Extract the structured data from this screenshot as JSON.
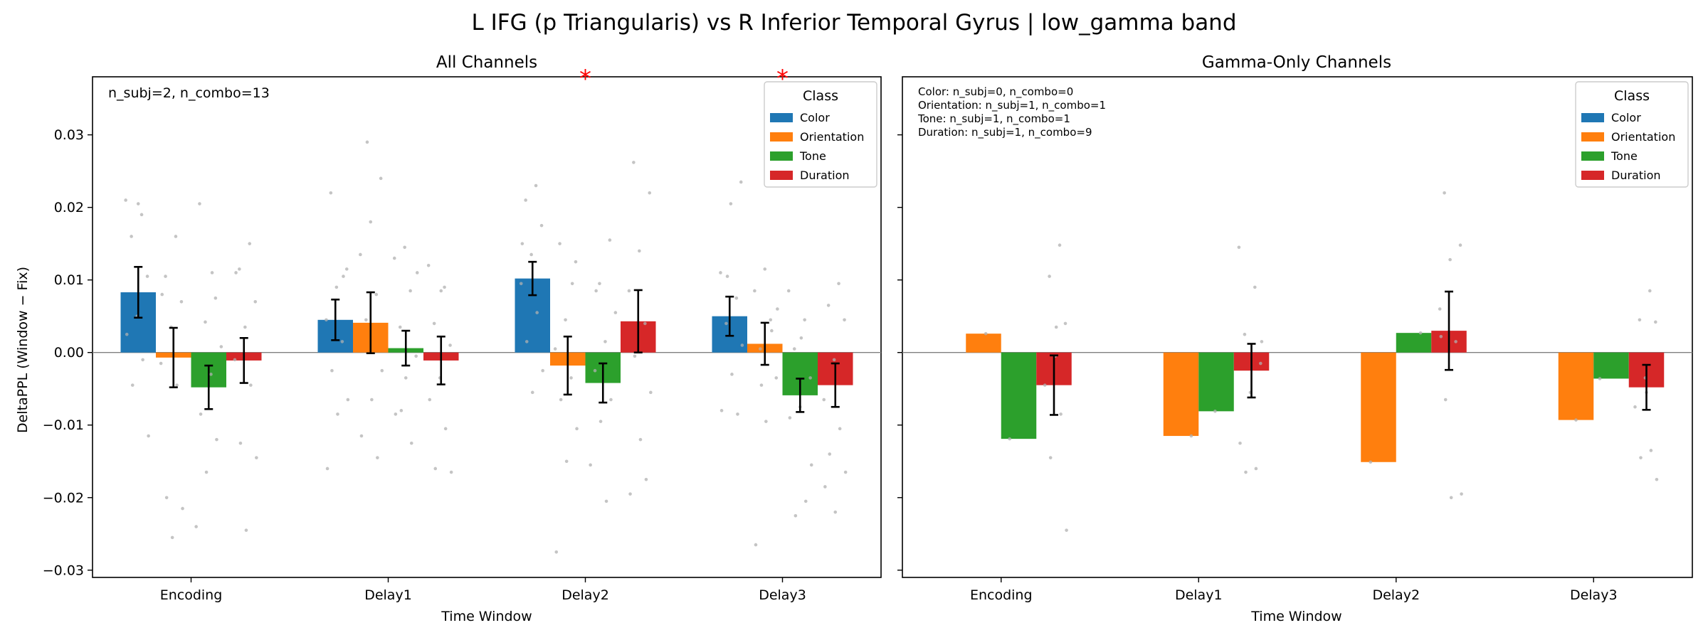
{
  "figure": {
    "title": "L IFG (p Triangularis) vs R Inferior Temporal Gyrus  |  low_gamma band",
    "ylabel": "DeltaPPL (Window − Fix)"
  },
  "legend": {
    "title": "Class",
    "entries": [
      "Color",
      "Orientation",
      "Tone",
      "Duration"
    ],
    "placement": "top-right"
  },
  "colors": {
    "Color": "#1f77b4",
    "Orientation": "#ff7f0e",
    "Tone": "#2ca02c",
    "Duration": "#d62728",
    "significance": "#ff0000",
    "points": "#b0b0b0"
  },
  "chart_data": [
    {
      "type": "bar",
      "title": "All Channels",
      "xlabel": "Time Window",
      "ylabel": "DeltaPPL (Window − Fix)",
      "ylim": [
        -0.031,
        0.038
      ],
      "yticks": [
        -0.03,
        -0.02,
        -0.01,
        0.0,
        0.01,
        0.02,
        0.03
      ],
      "yticklabels": [
        "−0.03",
        "−0.02",
        "−0.01",
        "0.00",
        "0.01",
        "0.02",
        "0.03"
      ],
      "categories": [
        "Encoding",
        "Delay1",
        "Delay2",
        "Delay3"
      ],
      "annotation": "n_subj=2, n_combo=13",
      "significance": [
        {
          "category": "Delay2",
          "label": "*"
        },
        {
          "category": "Delay3",
          "label": "*"
        }
      ],
      "series": [
        {
          "name": "Color",
          "values": [
            0.0083,
            0.0045,
            0.0102,
            0.005
          ],
          "errors": [
            0.0035,
            0.0028,
            0.0023,
            0.0027
          ]
        },
        {
          "name": "Orientation",
          "values": [
            -0.0007,
            0.0041,
            -0.0018,
            0.0012
          ],
          "errors": [
            0.0041,
            0.0042,
            0.004,
            0.0029
          ]
        },
        {
          "name": "Tone",
          "values": [
            -0.0048,
            0.0006,
            -0.0042,
            -0.0059
          ],
          "errors": [
            0.003,
            0.0024,
            0.0027,
            0.0023
          ]
        },
        {
          "name": "Duration",
          "values": [
            -0.0011,
            -0.0011,
            0.0043,
            -0.0045
          ],
          "errors": [
            0.0031,
            0.0033,
            0.0043,
            0.003
          ]
        }
      ],
      "points": [
        [
          [
            0.021,
            0.019,
            0.016,
            0.0105,
            0.005,
            0.0025,
            -0.001,
            -0.0045,
            -0.0115,
            0.0205
          ],
          [
            0.016,
            0.0105,
            0.007,
            0.0035,
            -0.0015,
            -0.0045,
            -0.02,
            -0.0215,
            -0.0255,
            0.008
          ],
          [
            0.0205,
            0.0075,
            0.0042,
            0.0008,
            -0.003,
            -0.0085,
            -0.012,
            -0.0165,
            -0.024,
            0.011
          ],
          [
            0.015,
            0.0115,
            0.007,
            0.0035,
            -0.001,
            -0.0045,
            -0.0125,
            -0.0145,
            -0.0245,
            0.011
          ]
        ],
        [
          [
            0.022,
            0.0115,
            0.009,
            0.0045,
            0.0015,
            -0.0025,
            -0.0065,
            -0.0085,
            -0.016,
            0.0105
          ],
          [
            0.024,
            0.018,
            0.0135,
            0.008,
            0.0045,
            -0.0025,
            -0.0065,
            -0.0115,
            -0.0145,
            0.029
          ],
          [
            0.0145,
            0.013,
            0.0085,
            0.0035,
            -0.0005,
            -0.0035,
            -0.0085,
            -0.0125,
            -0.008,
            0.011
          ],
          [
            0.012,
            0.009,
            0.004,
            0.001,
            -0.0035,
            -0.0065,
            -0.0105,
            -0.016,
            -0.0165,
            0.0085
          ]
        ],
        [
          [
            0.023,
            0.021,
            0.0175,
            0.0135,
            0.0095,
            0.0055,
            0.0015,
            -0.0025,
            -0.0055,
            0.015
          ],
          [
            0.015,
            0.0125,
            0.0045,
            0.0005,
            -0.0035,
            -0.0065,
            -0.0105,
            -0.015,
            -0.0275,
            0.0095
          ],
          [
            0.0155,
            0.0095,
            0.0055,
            0.0015,
            -0.0025,
            -0.0065,
            -0.0095,
            -0.0155,
            -0.0205,
            0.0085
          ],
          [
            0.0262,
            0.022,
            0.014,
            0.0085,
            0.004,
            -0.0005,
            -0.0055,
            -0.012,
            -0.0195,
            -0.0175
          ]
        ],
        [
          [
            0.0235,
            0.0205,
            0.011,
            0.0075,
            0.004,
            0.001,
            -0.003,
            -0.008,
            -0.0085,
            0.0105
          ],
          [
            0.0115,
            0.0085,
            0.0045,
            0.0005,
            -0.0035,
            -0.0095,
            -0.0265,
            0.003,
            -0.0045,
            0.006
          ],
          [
            0.0085,
            0.0045,
            0.0005,
            -0.0035,
            -0.0075,
            -0.009,
            -0.0205,
            -0.0225,
            -0.0155,
            0.002
          ],
          [
            0.0095,
            0.0065,
            0.0045,
            -0.001,
            -0.0065,
            -0.0105,
            -0.014,
            -0.0165,
            -0.022,
            -0.0185
          ]
        ]
      ]
    },
    {
      "type": "bar",
      "title": "Gamma-Only Channels",
      "xlabel": "Time Window",
      "ylim": [
        -0.031,
        0.038
      ],
      "categories": [
        "Encoding",
        "Delay1",
        "Delay2",
        "Delay3"
      ],
      "annotation": [
        "Color: n_subj=0, n_combo=0",
        "Orientation: n_subj=1, n_combo=1",
        "Tone: n_subj=1, n_combo=1",
        "Duration: n_subj=1, n_combo=9"
      ],
      "series": [
        {
          "name": "Color",
          "values": [
            null,
            null,
            null,
            null
          ],
          "errors": [
            null,
            null,
            null,
            null
          ]
        },
        {
          "name": "Orientation",
          "values": [
            0.0026,
            -0.0115,
            -0.0151,
            -0.0093
          ],
          "errors": [
            null,
            null,
            null,
            null
          ]
        },
        {
          "name": "Tone",
          "values": [
            -0.0119,
            -0.0081,
            0.0027,
            -0.0036
          ],
          "errors": [
            null,
            null,
            null,
            null
          ]
        },
        {
          "name": "Duration",
          "values": [
            -0.0045,
            -0.0025,
            0.003,
            -0.0048
          ],
          "errors": [
            0.0041,
            0.0037,
            0.0054,
            0.0031
          ]
        }
      ],
      "points": [
        [
          [],
          [
            0.0026
          ],
          [
            -0.0119
          ],
          [
            0.0148,
            0.0105,
            0.004,
            -0.0005,
            -0.0045,
            -0.0085,
            -0.0145,
            -0.0245,
            0.0035
          ]
        ],
        [
          [],
          [
            -0.0115
          ],
          [
            -0.0081
          ],
          [
            0.0145,
            0.009,
            0.0025,
            -0.0015,
            -0.0055,
            -0.0125,
            -0.016,
            -0.0165,
            0.0015
          ]
        ],
        [
          [],
          [
            -0.0151
          ],
          [
            0.0027
          ],
          [
            0.022,
            0.0148,
            0.0128,
            0.006,
            0.0015,
            -0.0065,
            -0.0195,
            -0.02,
            0.0022
          ]
        ],
        [
          [],
          [
            -0.0093
          ],
          [
            -0.0036
          ],
          [
            0.0085,
            0.0045,
            0.0042,
            -0.0035,
            -0.0075,
            -0.0135,
            -0.0145,
            -0.0175,
            -0.0055
          ]
        ]
      ]
    }
  ]
}
